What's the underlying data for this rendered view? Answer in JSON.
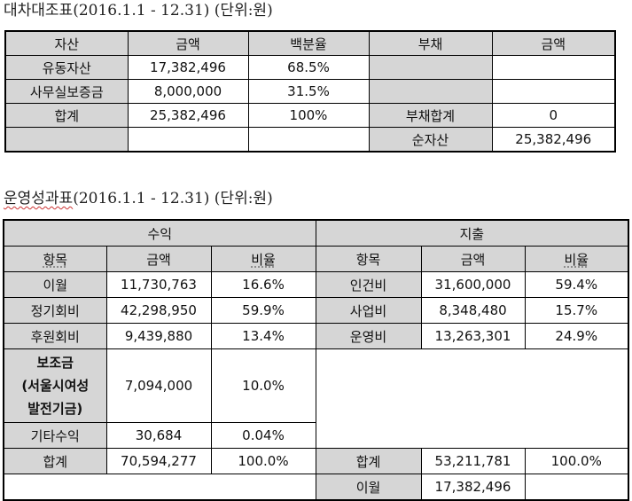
{
  "balance_sheet": {
    "title": "대차대조표(2016.1.1  -  12.31) (단위:원)",
    "headers": [
      "자산",
      "금액",
      "백분율",
      "부채",
      "금액"
    ],
    "rows": [
      [
        "유동자산",
        "17,382,496",
        "68.5%",
        "",
        ""
      ],
      [
        "사무실보증금",
        "8,000,000",
        "31.5%",
        "",
        ""
      ],
      [
        "합계",
        "25,382,496",
        "100%",
        "부채합계",
        "0"
      ],
      [
        "",
        "",
        "",
        "순자산",
        "25,382,496"
      ]
    ]
  },
  "income_statement": {
    "title_main": "운영성과표",
    "title_rest": "(2016.1.1  -  12.31) (단위:원)",
    "income_label": "수익",
    "expense_label": "지출",
    "headers": [
      "항목",
      "금액",
      "비율",
      "항목",
      "금액",
      "비율"
    ],
    "income_rows": [
      [
        "이월",
        "11,730,763",
        "16.6%"
      ],
      [
        "정기회비",
        "42,298,950",
        "59.9%"
      ],
      [
        "후원회비",
        "9,439,880",
        "13.4%"
      ],
      [
        "보조금\n(서울시여성\n발전기금)",
        "7,094,000",
        "10.0%"
      ],
      [
        "기타수익",
        "30,684",
        "0.04%"
      ],
      [
        "합계",
        "70,594,277",
        "100.0%"
      ]
    ],
    "subsidy_label_lines": [
      "보조금",
      "(서울시여성",
      "발전기금)"
    ],
    "expense_rows": [
      [
        "인건비",
        "31,600,000",
        "59.4%"
      ],
      [
        "사업비",
        "8,348,480",
        "15.7%"
      ],
      [
        "운영비",
        "13,263,301",
        "24.9%"
      ]
    ],
    "expense_total": [
      "합계",
      "53,211,781",
      "100.0%"
    ],
    "carryover": [
      "이월",
      "17,382,496"
    ]
  }
}
